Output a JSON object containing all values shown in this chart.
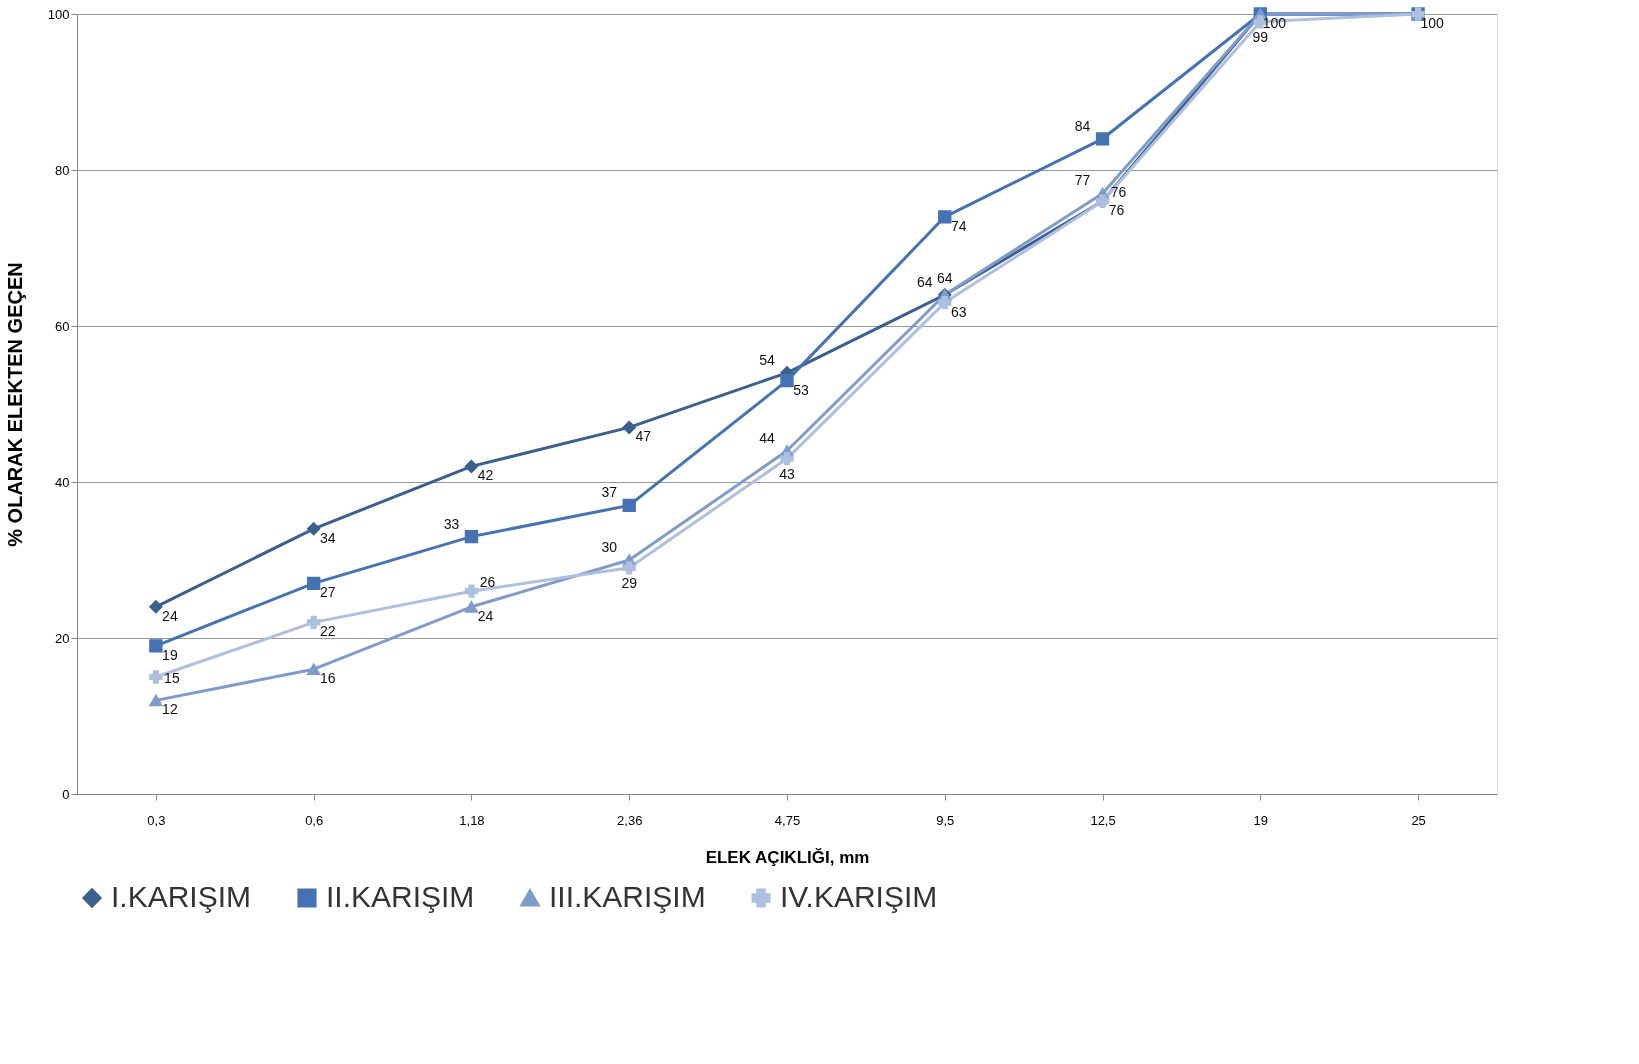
{
  "chart_data": {
    "type": "line",
    "xlabel": "ELEK AÇIKLIĞI, mm",
    "ylabel": "% OLARAK ELEKTEN  GEÇEN",
    "categories": [
      "0,3",
      "0,6",
      "1,18",
      "2,36",
      "4,75",
      "9,5",
      "12,5",
      "19",
      "25"
    ],
    "series": [
      {
        "name": "I.KARIŞIM",
        "color": "#3b5f8e",
        "marker": "diamond",
        "values": [
          24,
          34,
          42,
          47,
          54,
          64,
          76,
          100,
          100
        ],
        "value_labels": [
          "24",
          "34",
          "42",
          "47",
          "54",
          "64",
          "76",
          null,
          null
        ]
      },
      {
        "name": "II.KARIŞIM",
        "color": "#4472b4",
        "marker": "square",
        "values": [
          19,
          27,
          33,
          37,
          53,
          74,
          84,
          100,
          100
        ],
        "value_labels": [
          "19",
          "27",
          "33",
          "37",
          "53",
          "74",
          "84",
          null,
          "100"
        ]
      },
      {
        "name": "III.KARIŞIM",
        "color": "#7f9bcb",
        "marker": "triangle",
        "values": [
          12,
          16,
          24,
          30,
          44,
          64,
          77,
          100,
          100
        ],
        "value_labels": [
          "12",
          "16",
          "24",
          "30",
          "44",
          "64",
          "77",
          "100",
          null
        ]
      },
      {
        "name": "IV.KARIŞIM",
        "color": "#aebfdf",
        "marker": "cross",
        "values": [
          15,
          22,
          26,
          29,
          43,
          63,
          76,
          99,
          100
        ],
        "value_labels": [
          "15",
          "22",
          "26",
          "29",
          "43",
          "63",
          "76",
          "99",
          null
        ]
      }
    ],
    "ylim": [
      0,
      100
    ],
    "yticks": [
      0,
      20,
      40,
      60,
      80,
      100
    ],
    "grid": "y",
    "legend": "bottom",
    "line_style": "solid"
  }
}
